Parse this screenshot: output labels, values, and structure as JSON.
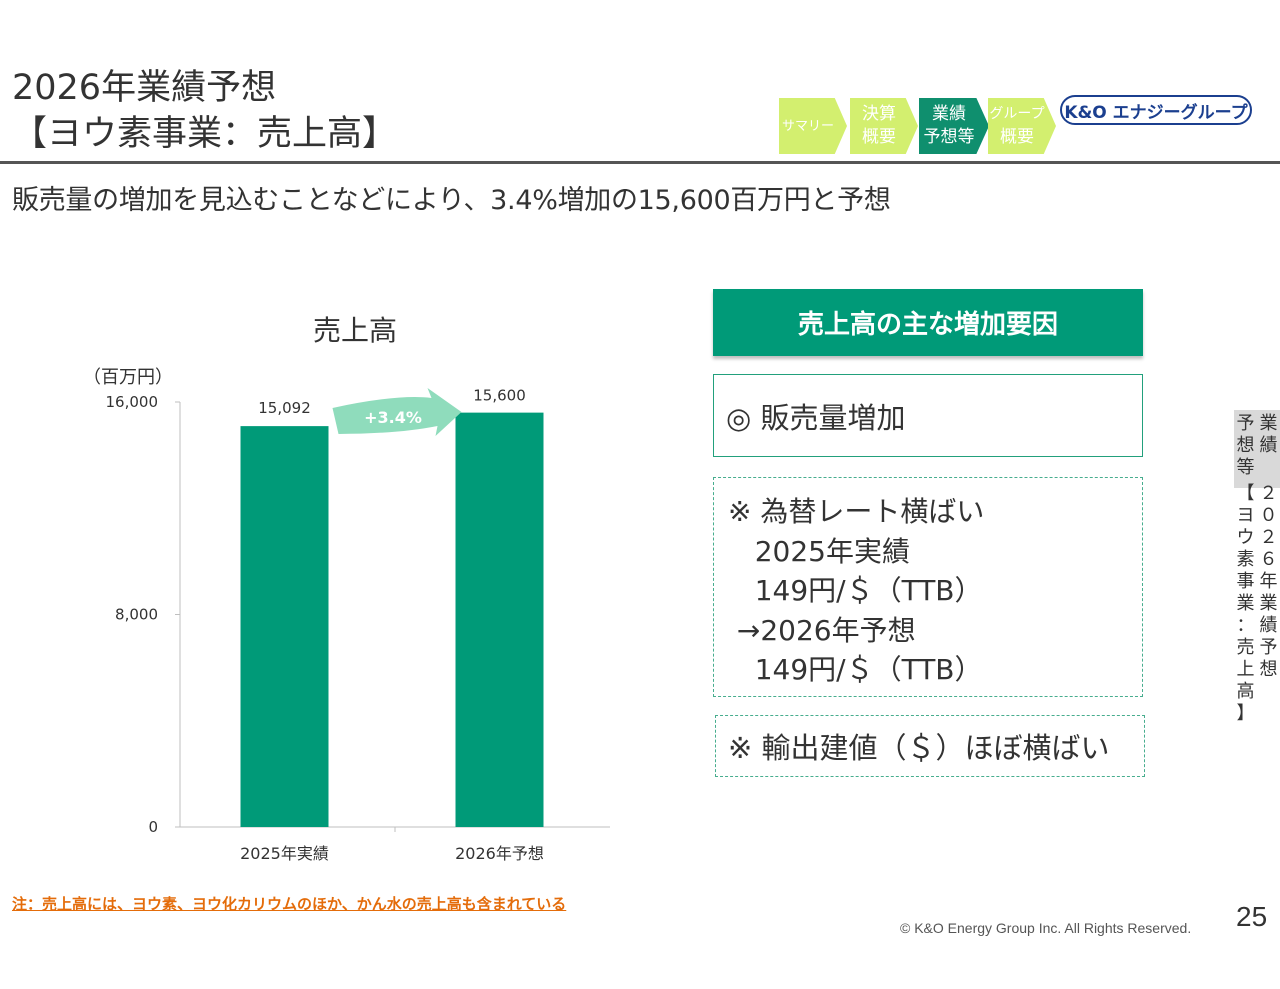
{
  "header": {
    "title_line1": "2026年業績予想",
    "title_line2": "【ヨウ素事業：売上高】",
    "subtitle": "販売量の増加を見込むことなどにより、3.4%増加の15,600百万円と予想"
  },
  "nav": {
    "summary": "サマリー",
    "results_1": "決算",
    "results_2": "概要",
    "forecast_1": "業績",
    "forecast_2": "予想等",
    "group_1": "グループ",
    "group_2": "概要",
    "logo": "K&O エナジーグループ"
  },
  "chart_data": {
    "type": "bar",
    "title": "売上高",
    "ylabel": "（百万円）",
    "categories": [
      "2025年実績",
      "2026年予想"
    ],
    "values": [
      15092,
      15600
    ],
    "value_labels": [
      "15,092",
      "15,600"
    ],
    "ylim": [
      0,
      16000
    ],
    "yticks": [
      0,
      8000,
      16000
    ],
    "ytick_labels": [
      "0",
      "8,000",
      "16,000"
    ],
    "annotation": "+3.4%",
    "bar_color": "#009a78",
    "arrow_color": "#8fdcbc"
  },
  "factors": {
    "header": "売上高の主な増加要因",
    "main": "◎ 販売量増加",
    "fx_lines": [
      "※ 為替レート横ばい",
      "   2025年実績",
      "   149円/＄（TTB）",
      " →2026年予想",
      "   149円/＄（TTB）"
    ],
    "export": "※ 輸出建値（＄）ほぼ横ばい"
  },
  "sidebar": {
    "col_a": [
      "業",
      "績"
    ],
    "col_b": [
      "予",
      "想",
      "等"
    ],
    "col_c": [
      "２",
      "０",
      "２",
      "６",
      "年",
      "業",
      "績",
      "予",
      "想"
    ],
    "col_d": [
      "【",
      "ヨ",
      "ウ",
      "素",
      "事",
      "業",
      "：",
      "売",
      "上",
      "高",
      "】"
    ]
  },
  "footer": {
    "note": "注：売上高には、ヨウ素、ヨウ化カリウムのほか、かん水の売上高も含まれている",
    "copyright": "© K&O Energy Group Inc. All Rights Reserved.",
    "page": "25"
  }
}
